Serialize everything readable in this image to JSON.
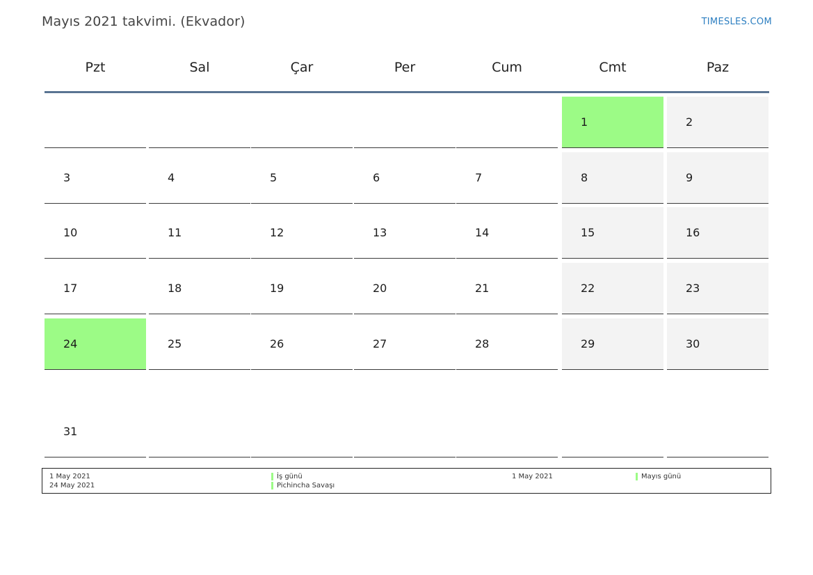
{
  "header": {
    "title": "Mayıs 2021 takvimi. (Ekvador)",
    "brand": "TIMESLES.COM"
  },
  "weekdays": [
    "Pzt",
    "Sal",
    "Çar",
    "Per",
    "Cum",
    "Cmt",
    "Paz"
  ],
  "colors": {
    "holiday": "#9cfb86",
    "weekend": "#f3f3f3",
    "header_rule": "#5a7492",
    "brand": "#2d7fc1"
  },
  "calendar": {
    "weeks": [
      [
        null,
        null,
        null,
        null,
        null,
        {
          "day": "1",
          "holiday": true
        },
        {
          "day": "2"
        }
      ],
      [
        {
          "day": "3"
        },
        {
          "day": "4"
        },
        {
          "day": "5"
        },
        {
          "day": "6"
        },
        {
          "day": "7"
        },
        {
          "day": "8"
        },
        {
          "day": "9"
        }
      ],
      [
        {
          "day": "10"
        },
        {
          "day": "11"
        },
        {
          "day": "12"
        },
        {
          "day": "13"
        },
        {
          "day": "14"
        },
        {
          "day": "15"
        },
        {
          "day": "16"
        }
      ],
      [
        {
          "day": "17"
        },
        {
          "day": "18"
        },
        {
          "day": "19"
        },
        {
          "day": "20"
        },
        {
          "day": "21"
        },
        {
          "day": "22"
        },
        {
          "day": "23"
        }
      ],
      [
        {
          "day": "24",
          "holiday": true
        },
        {
          "day": "25"
        },
        {
          "day": "26"
        },
        {
          "day": "27"
        },
        {
          "day": "28"
        },
        {
          "day": "29"
        },
        {
          "day": "30"
        }
      ],
      [
        {
          "day": "31"
        },
        null,
        null,
        null,
        null,
        null,
        null
      ]
    ]
  },
  "legend": {
    "col1_dates": [
      "1 May 2021",
      "24 May 2021"
    ],
    "col1_names": [
      "İş günü",
      "Pichincha Savaşı"
    ],
    "col2_dates": [
      "1 May 2021"
    ],
    "col2_names": [
      "Mayıs günü"
    ]
  }
}
